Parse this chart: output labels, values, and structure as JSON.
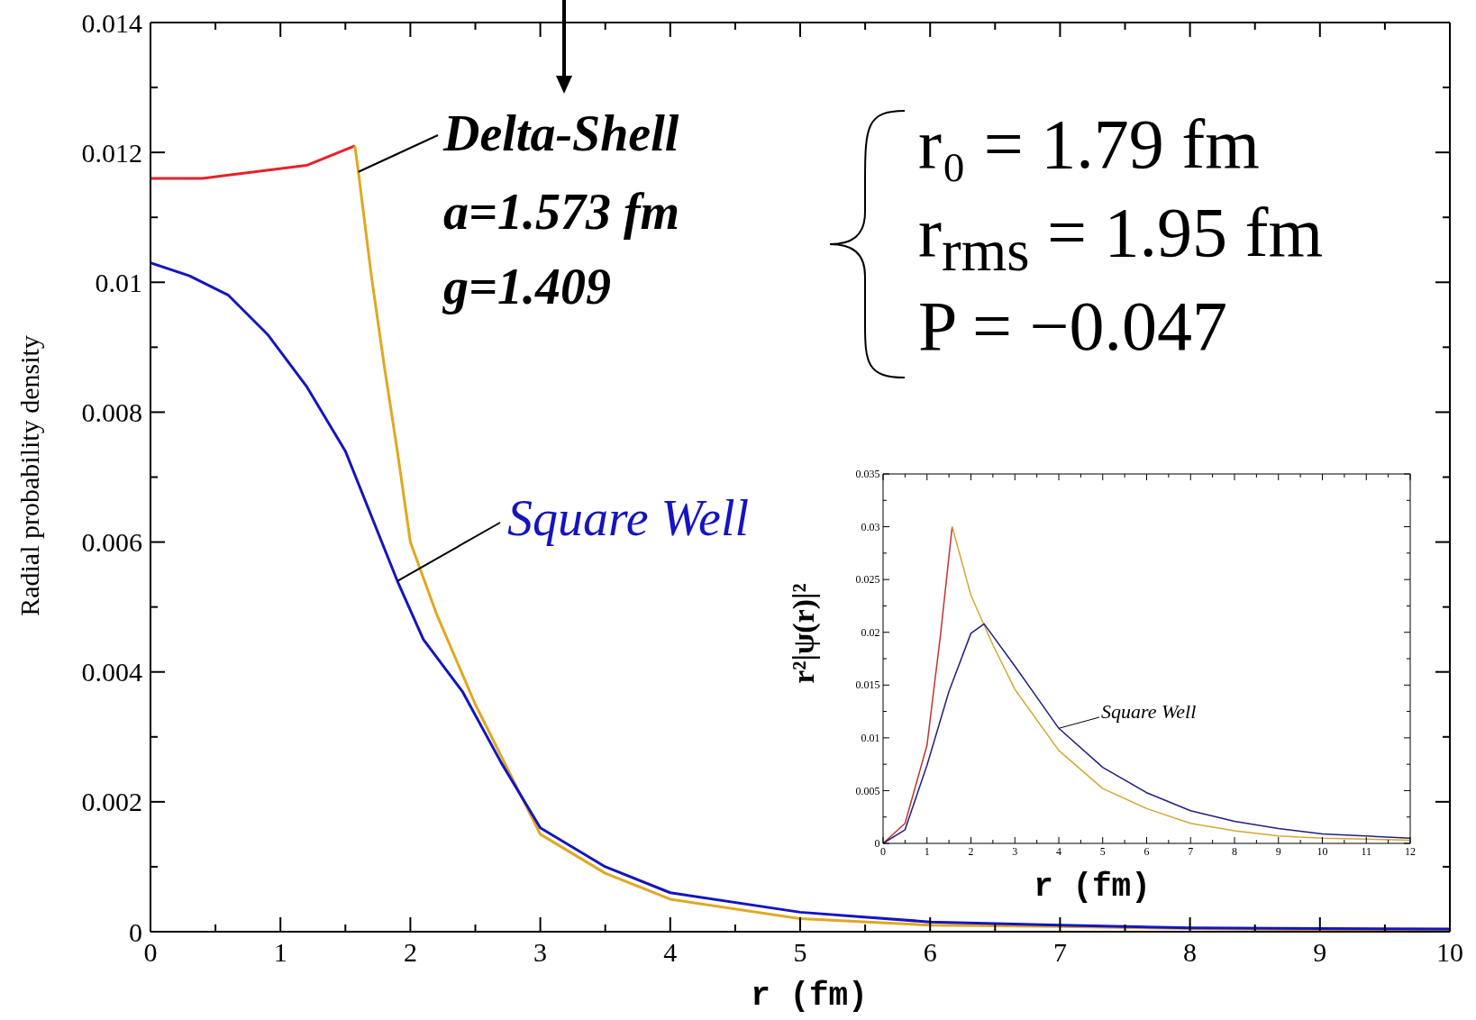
{
  "chart_data": [
    {
      "type": "line",
      "xlabel": "r (fm)",
      "ylabel": "Radial probability density",
      "xlim": [
        0,
        10
      ],
      "ylim": [
        0,
        0.014
      ],
      "xticks": [
        0,
        {
          "value": 0.5,
          "label": null
        },
        1,
        {
          "value": 1.5,
          "label": null
        },
        2,
        {
          "value": 2.5,
          "label": null
        },
        3,
        {
          "value": 3.5,
          "label": null
        },
        4,
        {
          "value": 4.5,
          "label": null
        },
        5,
        {
          "value": 5.5,
          "label": null
        },
        6,
        {
          "value": 6.5,
          "label": null
        },
        7,
        {
          "value": 7.5,
          "label": null
        },
        8,
        {
          "value": 8.5,
          "label": null
        },
        9,
        {
          "value": 9.5,
          "label": null
        },
        10
      ],
      "yticks": [
        0,
        {
          "value": 0.001,
          "label": null
        },
        0.002,
        {
          "value": 0.003,
          "label": null
        },
        0.004,
        {
          "value": 0.005,
          "label": null
        },
        0.006,
        {
          "value": 0.007,
          "label": null
        },
        0.008,
        {
          "value": 0.009,
          "label": null
        },
        0.01,
        {
          "value": 0.011,
          "label": null
        },
        0.012,
        {
          "value": 0.013,
          "label": null
        },
        0.014
      ],
      "series": [
        {
          "color": "#e8202a",
          "x": [
            0,
            0.4,
            0.8,
            1.2,
            1.573
          ],
          "values": [
            0.0116,
            0.0116,
            0.0117,
            0.0118,
            0.0121
          ]
        },
        {
          "name": "Delta-Shell",
          "color": "#e0a820",
          "x": [
            1.573,
            1.6,
            1.7,
            1.8,
            1.9,
            2.0,
            2.2,
            2.5,
            3,
            3.5,
            4,
            5,
            6,
            7,
            8,
            9,
            10
          ],
          "values": [
            0.0121,
            0.0117,
            0.0101,
            0.0087,
            0.0074,
            0.006,
            0.0049,
            0.0035,
            0.0015,
            0.0009,
            0.0005,
            0.0002,
            0.0001,
            8e-05,
            5e-05,
            3e-05,
            2e-05
          ]
        },
        {
          "name": "Square Well",
          "color": "#1414c0",
          "x": [
            0,
            0.3,
            0.6,
            0.9,
            1.2,
            1.5,
            1.9,
            2.1,
            2.4,
            2.7,
            3,
            3.5,
            4,
            5,
            6,
            7,
            8,
            9,
            10
          ],
          "values": [
            0.0103,
            0.0101,
            0.0098,
            0.0092,
            0.0084,
            0.0074,
            0.0054,
            0.0045,
            0.0037,
            0.0026,
            0.0016,
            0.001,
            0.0006,
            0.0003,
            0.00015,
            0.0001,
            6e-05,
            5e-05,
            4e-05
          ]
        }
      ],
      "annotations": [
        {
          "text": "a=1.573 fm",
          "x": 1.6,
          "y": 0.0117
        },
        "g=1.409",
        "r₀ = 1.79 fm",
        "r$_{rms}$ = 1.95 fm",
        "P = −0.047"
      ]
    },
    {
      "type": "line",
      "xlabel": "r (fm)",
      "ylabel": "r²|ψ(r)|²",
      "xlim": [
        0,
        12
      ],
      "ylim": [
        0,
        0.035
      ],
      "xticks": [
        0,
        {
          "value": 0.5,
          "label": null
        },
        1,
        {
          "value": 1.5,
          "label": null
        },
        2,
        {
          "value": 2.5,
          "label": null
        },
        3,
        {
          "value": 3.5,
          "label": null
        },
        4,
        {
          "value": 4.5,
          "label": null
        },
        5,
        {
          "value": 5.5,
          "label": null
        },
        6,
        {
          "value": 6.5,
          "label": null
        },
        7,
        {
          "value": 7.5,
          "label": null
        },
        8,
        {
          "value": 8.5,
          "label": null
        },
        9,
        {
          "value": 9.5,
          "label": null
        },
        10,
        {
          "value": 10.5,
          "label": null
        },
        11,
        {
          "value": 11.5,
          "label": null
        },
        12
      ],
      "yticks": [
        0,
        {
          "value": 0.0025,
          "label": null
        },
        0.005,
        {
          "value": 0.0075,
          "label": null
        },
        0.01,
        {
          "value": 0.0125,
          "label": null
        },
        0.015,
        {
          "value": 0.0175,
          "label": null
        },
        0.02,
        {
          "value": 0.0225,
          "label": null
        },
        0.025,
        {
          "value": 0.0275,
          "label": null
        },
        0.03,
        {
          "value": 0.0325,
          "label": null
        },
        0.035
      ],
      "series": [
        {
          "color": "#c83030",
          "x": [
            0,
            0.5,
            1,
            1.3,
            1.573
          ],
          "values": [
            0,
            0.0019,
            0.0093,
            0.0195,
            0.03
          ]
        },
        {
          "color": "#d4a830",
          "x": [
            1.573,
            2,
            2.5,
            3,
            4,
            5,
            6,
            7,
            8,
            9,
            10,
            11,
            12
          ],
          "values": [
            0.03,
            0.0235,
            0.0188,
            0.0146,
            0.0088,
            0.0052,
            0.0033,
            0.0019,
            0.0012,
            0.0007,
            0.0005,
            0.0004,
            0.0003
          ]
        },
        {
          "name": "Square Well",
          "color": "#202080",
          "x": [
            0,
            0.5,
            1,
            1.5,
            2,
            2.3,
            3,
            4,
            5,
            6,
            7,
            8,
            9,
            10,
            12
          ],
          "values": [
            0,
            0.0013,
            0.0074,
            0.0144,
            0.0199,
            0.0208,
            0.0168,
            0.0109,
            0.0072,
            0.0048,
            0.0031,
            0.0021,
            0.0014,
            0.0009,
            0.0005
          ]
        }
      ]
    }
  ]
}
